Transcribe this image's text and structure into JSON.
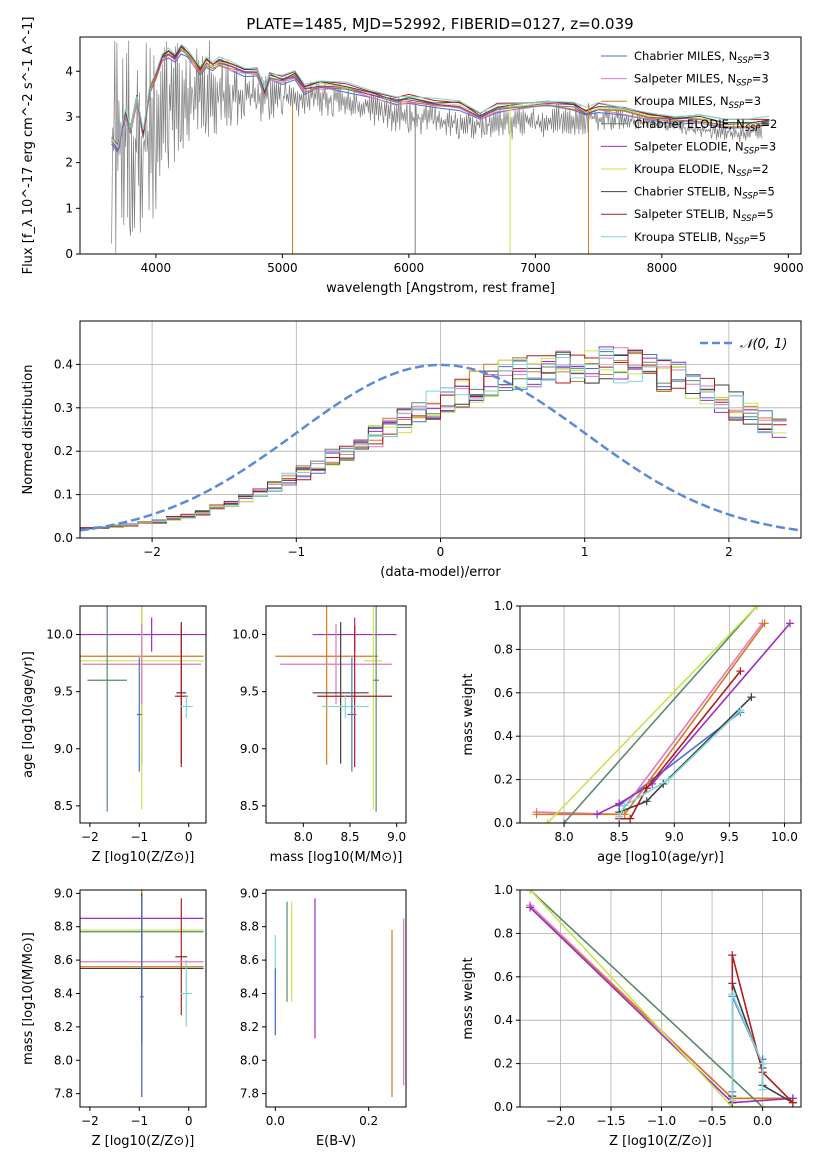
{
  "figure_title": "PLATE=1485, MJD=52992, FIBERID=0127, z=0.039",
  "models": [
    {
      "name": "Chabrier MILES",
      "nssp": "3",
      "color": "#4a6fd0"
    },
    {
      "name": "Salpeter MILES",
      "nssp": "3",
      "color": "#e377c2"
    },
    {
      "name": "Kroupa MILES",
      "nssp": "3",
      "color": "#d67a1e"
    },
    {
      "name": "Chabrier ELODIE",
      "nssp": "2",
      "color": "#5a8a6a"
    },
    {
      "name": "Salpeter ELODIE",
      "nssp": "3",
      "color": "#9b2fc4"
    },
    {
      "name": "Kroupa ELODIE",
      "nssp": "2",
      "color": "#c8e64a"
    },
    {
      "name": "Chabrier STELIB",
      "nssp": "5",
      "color": "#404040"
    },
    {
      "name": "Salpeter STELIB",
      "nssp": "5",
      "color": "#b01c1c"
    },
    {
      "name": "Kroupa STELIB",
      "nssp": "5",
      "color": "#7fd6d8"
    }
  ],
  "chart_data": [
    {
      "id": "spectrum",
      "type": "line",
      "title": "PLATE=1485, MJD=52992, FIBERID=0127, z=0.039",
      "xlabel": "wavelength [Angstrom, rest frame]",
      "ylabel": "Flux [f_λ 10^-17 erg cm^-2 s^-1 A^-1]",
      "xlim": [
        3400,
        9100
      ],
      "ylim": [
        0,
        4.75
      ],
      "xticks": [
        4000,
        5000,
        6000,
        7000,
        8000,
        9000
      ],
      "yticks": [
        0,
        1,
        2,
        3,
        4
      ],
      "data_color": "#808080",
      "data_envelope": {
        "x": [
          3650,
          3700,
          3800,
          3900,
          4000,
          4100,
          4200,
          4300,
          4400,
          4500,
          4600,
          4700,
          4800,
          4900,
          5000,
          5200,
          5400,
          5600,
          5800,
          6000,
          6200,
          6400,
          6600,
          6800,
          7000,
          7200,
          7400,
          7600,
          7800,
          8000,
          8200,
          8400,
          8600,
          8800
        ],
        "lower": [
          0,
          0,
          0,
          0,
          0.3,
          1.6,
          2.2,
          2.3,
          2.5,
          2.6,
          2.8,
          2.8,
          2.9,
          2.9,
          3.0,
          3.0,
          3.0,
          3.0,
          2.7,
          2.6,
          2.6,
          2.5,
          2.5,
          2.5,
          2.5,
          2.6,
          2.6,
          2.7,
          2.7,
          2.7,
          2.6,
          2.5,
          2.4,
          2.5
        ],
        "upper": [
          4.75,
          4.75,
          4.75,
          4.75,
          4.75,
          4.75,
          4.75,
          4.75,
          4.75,
          4.5,
          4.3,
          4.2,
          4.0,
          3.9,
          3.9,
          3.9,
          3.8,
          3.6,
          3.5,
          3.4,
          3.3,
          3.2,
          3.2,
          3.2,
          3.3,
          3.3,
          3.3,
          3.3,
          3.1,
          3.0,
          2.9,
          2.9,
          2.9,
          2.9
        ]
      },
      "model_flux": {
        "x": [
          3650,
          3700,
          3760,
          3800,
          3850,
          3900,
          3950,
          4000,
          4050,
          4100,
          4150,
          4200,
          4250,
          4300,
          4350,
          4400,
          4450,
          4500,
          4600,
          4700,
          4800,
          4860,
          4900,
          5000,
          5100,
          5175,
          5300,
          5500,
          5700,
          5900,
          6000,
          6200,
          6400,
          6563,
          6700,
          6900,
          7100,
          7300,
          7400,
          7500,
          7700,
          7900,
          8100,
          8300,
          8500,
          8700,
          8850
        ],
        "y": [
          2.5,
          2.3,
          3.1,
          2.7,
          3.4,
          2.6,
          3.6,
          3.9,
          4.3,
          4.4,
          4.3,
          4.5,
          4.4,
          4.2,
          4.0,
          4.2,
          4.1,
          4.2,
          4.1,
          4.0,
          4.0,
          3.5,
          3.9,
          3.8,
          3.9,
          3.6,
          3.7,
          3.65,
          3.5,
          3.35,
          3.4,
          3.3,
          3.25,
          3.0,
          3.2,
          3.25,
          3.3,
          3.25,
          3.1,
          3.2,
          3.15,
          3.0,
          2.95,
          2.95,
          2.85,
          2.85,
          2.9
        ]
      },
      "legend": "upper right"
    },
    {
      "id": "residuals",
      "type": "histogram",
      "xlabel": "(data-model)/error",
      "ylabel": "Normed distribution",
      "xlim": [
        -2.5,
        2.5
      ],
      "ylim": [
        0,
        0.5
      ],
      "xticks": [
        -2,
        -1,
        0,
        1,
        2
      ],
      "yticks": [
        0,
        0.1,
        0.2,
        0.3,
        0.4
      ],
      "reference_label": "𝒩(0, 1)",
      "reference_color": "#5b8bd8",
      "bin_width": 0.1,
      "bins_start": -2.5,
      "series": [
        {
          "values": [
            0.022,
            0.024,
            0.027,
            0.03,
            0.035,
            0.038,
            0.045,
            0.05,
            0.058,
            0.07,
            0.08,
            0.092,
            0.105,
            0.12,
            0.135,
            0.15,
            0.165,
            0.185,
            0.2,
            0.215,
            0.235,
            0.25,
            0.27,
            0.285,
            0.305,
            0.32,
            0.335,
            0.35,
            0.365,
            0.375,
            0.385,
            0.39,
            0.395,
            0.4,
            0.4,
            0.4,
            0.398,
            0.395,
            0.39,
            0.385,
            0.375,
            0.365,
            0.35,
            0.335,
            0.32,
            0.305,
            0.285,
            0.27,
            0.25
          ]
        }
      ],
      "noise_seed": 7
    },
    {
      "id": "age_vs_Z",
      "type": "errorbar",
      "xlabel": "Z [log10(Z/Z⊙)]",
      "ylabel": "age [log10(age/yr)]",
      "xlim": [
        -2.2,
        0.35
      ],
      "ylim": [
        8.35,
        10.25
      ],
      "xticks": [
        -2,
        -1,
        0
      ],
      "yticks": [
        8.5,
        9.0,
        9.5,
        10.0
      ],
      "points": [
        {
          "model": 4,
          "x": -0.75,
          "xerr": 1.45,
          "y": 10.0,
          "yerr": 0.15
        },
        {
          "model": 2,
          "x": -0.95,
          "xerr": 1.25,
          "y": 9.81,
          "yerr": 0.95
        },
        {
          "model": 5,
          "x": -0.95,
          "xerr": 1.25,
          "y": 9.77,
          "yerr": 1.3
        },
        {
          "model": 1,
          "x": -0.95,
          "xerr": 1.2,
          "y": 9.74,
          "yerr": 0.35
        },
        {
          "model": 3,
          "x": -1.65,
          "xerr": 0.4,
          "y": 9.6,
          "yerr": 1.15
        },
        {
          "model": 6,
          "x": -0.15,
          "xerr": 0.1,
          "y": 9.49,
          "yerr": 0.62
        },
        {
          "model": 7,
          "x": -0.15,
          "xerr": 0.13,
          "y": 9.46,
          "yerr": 0.62
        },
        {
          "model": 8,
          "x": -0.05,
          "xerr": 0.13,
          "y": 9.37,
          "yerr": 0.1
        },
        {
          "model": 0,
          "x": -1.0,
          "xerr": 0.05,
          "y": 9.3,
          "yerr": 0.5
        }
      ]
    },
    {
      "id": "age_vs_mass",
      "type": "errorbar",
      "xlabel": "mass [log10(M/M⊙)]",
      "ylabel": "",
      "xlim": [
        7.6,
        9.1
      ],
      "ylim": [
        8.35,
        10.25
      ],
      "xticks": [
        8.0,
        8.5,
        9.0
      ],
      "yticks": [
        8.5,
        9.0,
        9.5,
        10.0
      ],
      "points": [
        {
          "model": 4,
          "x": 8.55,
          "xerr": 0.45,
          "y": 10.0,
          "yerr": 0.15
        },
        {
          "model": 2,
          "x": 8.25,
          "xerr": 0.55,
          "y": 9.81,
          "yerr": 0.95
        },
        {
          "model": 5,
          "x": 8.75,
          "xerr": 0.1,
          "y": 9.77,
          "yerr": 1.3
        },
        {
          "model": 1,
          "x": 8.35,
          "xerr": 0.6,
          "y": 9.74,
          "yerr": 0.35
        },
        {
          "model": 3,
          "x": 8.78,
          "xerr": 0.03,
          "y": 9.6,
          "yerr": 1.15
        },
        {
          "model": 6,
          "x": 8.4,
          "xerr": 0.3,
          "y": 9.49,
          "yerr": 0.62
        },
        {
          "model": 7,
          "x": 8.55,
          "xerr": 0.4,
          "y": 9.46,
          "yerr": 0.62
        },
        {
          "model": 8,
          "x": 8.45,
          "xerr": 0.25,
          "y": 9.37,
          "yerr": 0.1
        },
        {
          "model": 0,
          "x": 8.52,
          "xerr": 0.05,
          "y": 9.3,
          "yerr": 0.5
        }
      ]
    },
    {
      "id": "massweight_vs_age",
      "type": "line",
      "xlabel": "age [log10(age/yr)]",
      "ylabel": "mass weight",
      "xlim": [
        7.6,
        10.15
      ],
      "ylim": [
        0,
        1.0
      ],
      "xticks": [
        8.0,
        8.5,
        9.0,
        9.5,
        10.0
      ],
      "yticks": [
        0,
        0.2,
        0.4,
        0.6,
        0.8,
        1.0
      ],
      "series": [
        {
          "model": 0,
          "x": [
            8.5,
            8.8,
            9.6
          ],
          "y": [
            0.08,
            0.2,
            0.51
          ]
        },
        {
          "model": 1,
          "x": [
            7.75,
            8.5,
            9.8
          ],
          "y": [
            0.05,
            0.04,
            0.92
          ]
        },
        {
          "model": 2,
          "x": [
            7.75,
            8.55,
            9.82
          ],
          "y": [
            0.04,
            0.04,
            0.92
          ]
        },
        {
          "model": 3,
          "x": [
            8.0,
            9.75
          ],
          "y": [
            0.0,
            1.0
          ]
        },
        {
          "model": 4,
          "x": [
            8.3,
            8.5,
            8.8,
            10.05
          ],
          "y": [
            0.04,
            0.09,
            0.18,
            0.92
          ]
        },
        {
          "model": 5,
          "x": [
            7.85,
            9.75
          ],
          "y": [
            0.0,
            1.0
          ]
        },
        {
          "model": 6,
          "x": [
            8.5,
            8.75,
            8.9,
            9.7
          ],
          "y": [
            0.05,
            0.1,
            0.18,
            0.58
          ]
        },
        {
          "model": 7,
          "x": [
            8.5,
            8.6,
            8.75,
            9.6
          ],
          "y": [
            0.02,
            0.02,
            0.16,
            0.7
          ]
        },
        {
          "model": 8,
          "x": [
            8.5,
            8.55,
            8.95,
            9.6
          ],
          "y": [
            0.03,
            0.08,
            0.2,
            0.52
          ]
        }
      ]
    },
    {
      "id": "mass_vs_Z",
      "type": "errorbar",
      "xlabel": "Z [log10(Z/Z⊙)]",
      "ylabel": "mass [log10(M/M⊙)]",
      "xlim": [
        -2.2,
        0.35
      ],
      "ylim": [
        7.72,
        9.02
      ],
      "xticks": [
        -2,
        -1,
        0
      ],
      "yticks": [
        7.8,
        8.0,
        8.2,
        8.4,
        8.6,
        8.8,
        9.0
      ],
      "points": [
        {
          "model": 4,
          "x": -0.95,
          "xerr": 1.25,
          "y": 8.85,
          "yerr": 0.12
        },
        {
          "model": 5,
          "x": -0.95,
          "xerr": 1.25,
          "y": 8.78,
          "yerr": 0.18
        },
        {
          "model": 3,
          "x": -0.95,
          "xerr": 1.25,
          "y": 8.77,
          "yerr": 0.4
        },
        {
          "model": 7,
          "x": -0.15,
          "xerr": 0.12,
          "y": 8.62,
          "yerr": 0.35
        },
        {
          "model": 1,
          "x": -0.95,
          "xerr": 1.25,
          "y": 8.59,
          "yerr": 0.35
        },
        {
          "model": 2,
          "x": -0.95,
          "xerr": 1.25,
          "y": 8.56,
          "yerr": 0.78
        },
        {
          "model": 6,
          "x": -0.95,
          "xerr": 1.25,
          "y": 8.55,
          "yerr": 0.45
        },
        {
          "model": 8,
          "x": -0.05,
          "xerr": 0.12,
          "y": 8.4,
          "yerr": 0.2
        },
        {
          "model": 0,
          "x": -0.95,
          "xerr": 0.04,
          "y": 8.38,
          "yerr": 0.6
        }
      ]
    },
    {
      "id": "mass_vs_EBV",
      "type": "errorbar",
      "xlabel": "E(B-V)",
      "ylabel": "",
      "xlim": [
        -0.02,
        0.28
      ],
      "ylim": [
        7.72,
        9.02
      ],
      "xticks": [
        0.0,
        0.2
      ],
      "yticks": [
        7.8,
        8.0,
        8.2,
        8.4,
        8.6,
        8.8,
        9.0
      ],
      "points": [
        {
          "model": 3,
          "x": 0.025,
          "xerr": 0,
          "y": 8.65,
          "yerr": 0.3
        },
        {
          "model": 5,
          "x": 0.035,
          "xerr": 0,
          "y": 8.65,
          "yerr": 0.3
        },
        {
          "model": 4,
          "x": 0.085,
          "xerr": 0,
          "y": 8.55,
          "yerr": 0.42
        },
        {
          "model": 2,
          "x": 0.25,
          "xerr": 0,
          "y": 8.28,
          "yerr": 0.5
        },
        {
          "model": 1,
          "x": 0.275,
          "xerr": 0,
          "y": 8.35,
          "yerr": 0.5
        },
        {
          "model": 8,
          "x": 0.0,
          "xerr": 0,
          "y": 8.45,
          "yerr": 0.3
        },
        {
          "model": 0,
          "x": 0.0,
          "xerr": 0,
          "y": 8.35,
          "yerr": 0.2
        }
      ]
    },
    {
      "id": "massweight_vs_Z",
      "type": "line",
      "xlabel": "Z [log10(Z/Z⊙)]",
      "ylabel": "mass weight",
      "xlim": [
        -2.4,
        0.38
      ],
      "ylim": [
        0,
        1.0
      ],
      "xticks": [
        -2.0,
        -1.5,
        -1.0,
        -0.5,
        0.0
      ],
      "yticks": [
        0,
        0.2,
        0.4,
        0.6,
        0.8,
        1.0
      ],
      "series": [
        {
          "model": 0,
          "x": [
            -0.3,
            -0.3,
            0.0,
            0.0
          ],
          "y": [
            0.07,
            0.51,
            0.2,
            0.22
          ]
        },
        {
          "model": 1,
          "x": [
            -2.3,
            -0.3,
            0.3
          ],
          "y": [
            0.93,
            0.04,
            0.04
          ]
        },
        {
          "model": 2,
          "x": [
            -2.3,
            -0.3,
            0.3
          ],
          "y": [
            0.92,
            0.04,
            0.04
          ]
        },
        {
          "model": 3,
          "x": [
            -2.3,
            0.0
          ],
          "y": [
            1.0,
            0.0
          ]
        },
        {
          "model": 4,
          "x": [
            -2.3,
            -0.3,
            0.3
          ],
          "y": [
            0.92,
            0.02,
            0.04
          ]
        },
        {
          "model": 5,
          "x": [
            -2.3,
            -0.3,
            0.0
          ],
          "y": [
            1.0,
            0.0,
            0.0
          ]
        },
        {
          "model": 6,
          "x": [
            -0.3,
            -0.3,
            0.0,
            0.0,
            0.3
          ],
          "y": [
            0.05,
            0.57,
            0.18,
            0.1,
            0.02
          ]
        },
        {
          "model": 7,
          "x": [
            -0.3,
            -0.3,
            0.0,
            0.3
          ],
          "y": [
            0.02,
            0.7,
            0.16,
            0.02
          ]
        },
        {
          "model": 8,
          "x": [
            -0.3,
            -0.3,
            0.0,
            0.0
          ],
          "y": [
            0.03,
            0.52,
            0.2,
            0.08
          ]
        }
      ]
    }
  ]
}
